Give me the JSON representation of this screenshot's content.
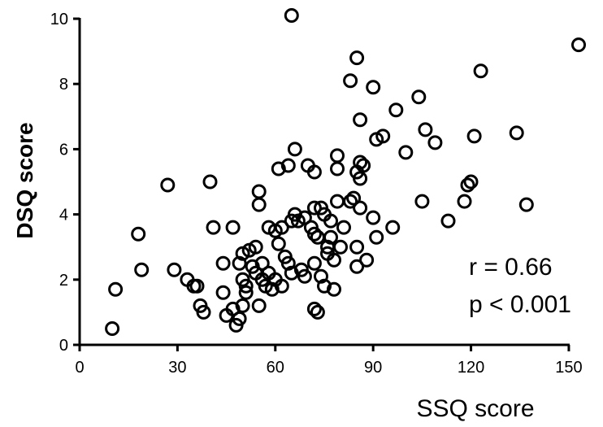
{
  "chart_data": {
    "type": "scatter",
    "xlabel": "SSQ score",
    "ylabel": "DSQ score",
    "xlim": [
      0,
      155
    ],
    "ylim": [
      0,
      10.2
    ],
    "xticks": [
      0,
      30,
      60,
      90,
      120,
      150
    ],
    "yticks": [
      0,
      2,
      4,
      6,
      8,
      10
    ],
    "grid": false,
    "annotations": [
      "r = 0.66",
      "p < 0.001"
    ],
    "series": [
      {
        "marker": "open-circle",
        "points": [
          [
            10,
            0.5
          ],
          [
            11,
            1.7
          ],
          [
            18,
            3.4
          ],
          [
            19,
            2.3
          ],
          [
            27,
            4.9
          ],
          [
            29,
            2.3
          ],
          [
            33,
            2.0
          ],
          [
            35,
            1.8
          ],
          [
            36,
            1.8
          ],
          [
            37,
            1.2
          ],
          [
            38,
            1.0
          ],
          [
            40,
            5.0
          ],
          [
            41,
            3.6
          ],
          [
            44,
            2.5
          ],
          [
            44,
            1.6
          ],
          [
            45,
            0.9
          ],
          [
            47,
            3.6
          ],
          [
            47,
            1.1
          ],
          [
            48,
            0.6
          ],
          [
            49,
            0.8
          ],
          [
            49,
            2.5
          ],
          [
            50,
            2.8
          ],
          [
            50,
            2.0
          ],
          [
            50,
            1.2
          ],
          [
            51,
            1.8
          ],
          [
            51,
            1.6
          ],
          [
            52,
            2.9
          ],
          [
            53,
            2.4
          ],
          [
            54,
            3.0
          ],
          [
            54,
            2.2
          ],
          [
            55,
            4.7
          ],
          [
            55,
            4.3
          ],
          [
            55,
            1.2
          ],
          [
            56,
            2.5
          ],
          [
            56,
            2.0
          ],
          [
            57,
            1.8
          ],
          [
            58,
            3.6
          ],
          [
            58,
            2.2
          ],
          [
            59,
            1.7
          ],
          [
            60,
            3.5
          ],
          [
            60,
            2.0
          ],
          [
            61,
            5.4
          ],
          [
            61,
            3.1
          ],
          [
            62,
            3.6
          ],
          [
            62,
            1.8
          ],
          [
            63,
            2.7
          ],
          [
            64,
            5.5
          ],
          [
            64,
            2.5
          ],
          [
            65,
            3.8
          ],
          [
            65,
            2.2
          ],
          [
            65,
            10.1
          ],
          [
            66,
            6.0
          ],
          [
            66,
            4.0
          ],
          [
            67,
            3.8
          ],
          [
            68,
            2.3
          ],
          [
            69,
            3.9
          ],
          [
            69,
            2.1
          ],
          [
            70,
            5.5
          ],
          [
            71,
            3.6
          ],
          [
            72,
            5.3
          ],
          [
            72,
            4.2
          ],
          [
            72,
            3.4
          ],
          [
            72,
            2.5
          ],
          [
            72,
            1.1
          ],
          [
            73,
            3.3
          ],
          [
            73,
            1.0
          ],
          [
            74,
            4.2
          ],
          [
            74,
            2.1
          ],
          [
            75,
            4.0
          ],
          [
            75,
            1.8
          ],
          [
            76,
            3.0
          ],
          [
            76,
            2.8
          ],
          [
            77,
            3.8
          ],
          [
            77,
            3.3
          ],
          [
            78,
            2.6
          ],
          [
            78,
            1.7
          ],
          [
            79,
            5.8
          ],
          [
            79,
            5.4
          ],
          [
            79,
            4.4
          ],
          [
            80,
            3.0
          ],
          [
            81,
            3.6
          ],
          [
            83,
            4.4
          ],
          [
            83,
            8.1
          ],
          [
            84,
            4.5
          ],
          [
            85,
            5.3
          ],
          [
            85,
            3.0
          ],
          [
            85,
            2.4
          ],
          [
            85,
            8.8
          ],
          [
            86,
            6.9
          ],
          [
            86,
            5.6
          ],
          [
            86,
            5.1
          ],
          [
            86,
            4.2
          ],
          [
            87,
            5.5
          ],
          [
            88,
            2.6
          ],
          [
            90,
            7.9
          ],
          [
            90,
            3.9
          ],
          [
            91,
            6.3
          ],
          [
            91,
            3.3
          ],
          [
            93,
            6.4
          ],
          [
            96,
            3.6
          ],
          [
            97,
            7.2
          ],
          [
            100,
            5.9
          ],
          [
            104,
            7.6
          ],
          [
            105,
            4.4
          ],
          [
            106,
            6.6
          ],
          [
            109,
            6.2
          ],
          [
            113,
            3.8
          ],
          [
            118,
            4.4
          ],
          [
            119,
            4.9
          ],
          [
            120,
            5.0
          ],
          [
            121,
            6.4
          ],
          [
            123,
            8.4
          ],
          [
            134,
            6.5
          ],
          [
            137,
            4.3
          ],
          [
            153,
            9.2
          ]
        ]
      }
    ]
  }
}
